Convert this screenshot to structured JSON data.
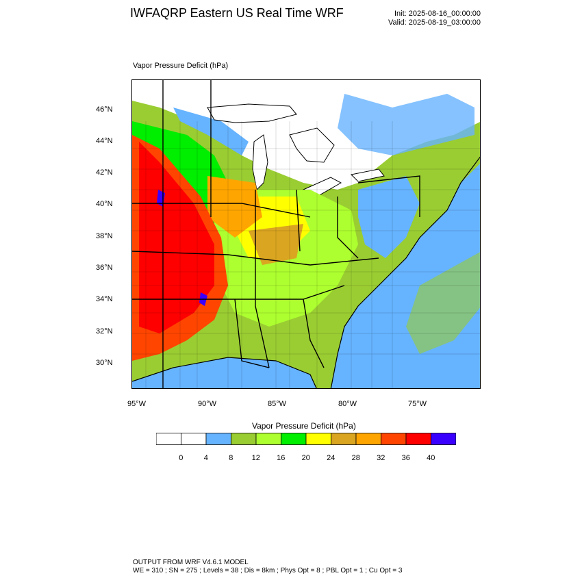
{
  "header": {
    "title": "IWFAQRP Eastern US Real Time WRF",
    "init": "Init: 2025-08-16_00:00:00",
    "valid": "Valid: 2025-08-19_03:00:00"
  },
  "field_title": "Vapor Pressure Deficit   (hPa)",
  "map": {
    "lat_labels": [
      "46°N",
      "44°N",
      "42°N",
      "40°N",
      "38°N",
      "36°N",
      "34°N",
      "32°N",
      "30°N"
    ],
    "lon_labels": [
      "95°W",
      "90°W",
      "85°W",
      "80°W",
      "75°W"
    ],
    "colors": {
      "land_low": "#9acd32",
      "water": "#ffffff",
      "ocean": "#66b3ff"
    }
  },
  "colorbar": {
    "title": "Vapor Pressure Deficit  (hPa)",
    "labels": [
      "0",
      "4",
      "8",
      "12",
      "16",
      "20",
      "24",
      "28",
      "32",
      "36",
      "40"
    ],
    "colors": [
      "#ffffff",
      "#ffffff",
      "#66b3ff",
      "#9acd32",
      "#adff2f",
      "#00ee00",
      "#ffff00",
      "#daa520",
      "#ffa500",
      "#ff4500",
      "#ff0000",
      "#3a00ff"
    ]
  },
  "footer": {
    "line1": "OUTPUT FROM WRF V4.6.1 MODEL",
    "line2": "WE = 310 ; SN = 275 ; Levels = 38 ; Dis = 8km ; Phys Opt = 8 ; PBL Opt = 1 ; Cu Opt = 3"
  }
}
